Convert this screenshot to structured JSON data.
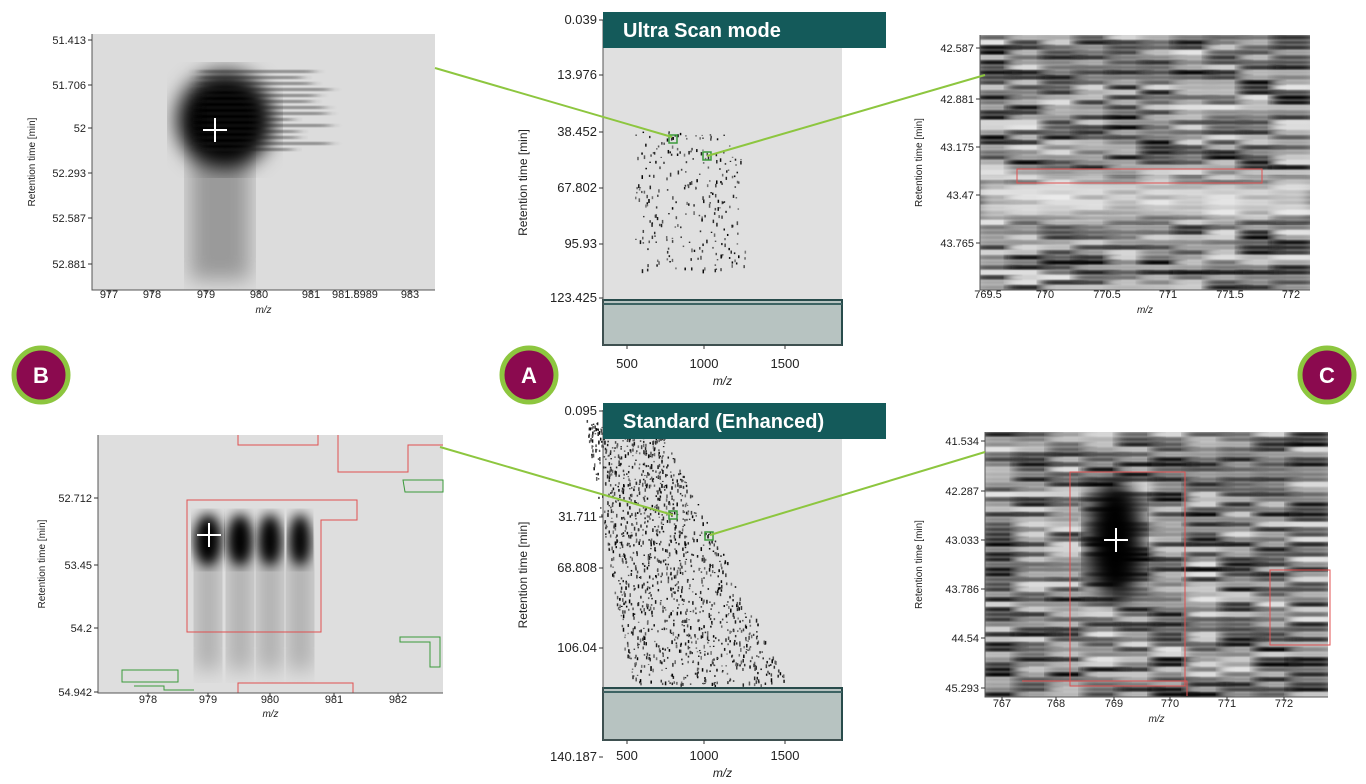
{
  "panels": [
    {
      "y_label": "Retention time [min]",
      "x_label": "m/z",
      "y_ticks": [
        "51.413",
        "51.706",
        "52",
        "52.293",
        "52.587",
        "52.881"
      ],
      "x_ticks": [
        "977",
        "978",
        "979",
        "980",
        "981",
        "981.8989",
        "983"
      ]
    },
    {
      "title": "Ultra Scan mode",
      "y_label": "Retention time [min]",
      "x_label": "m/z",
      "y_ticks": [
        "0.039",
        "13.976",
        "38.452",
        "67.802",
        "95.93",
        "123.425"
      ],
      "x_ticks": [
        "500",
        "1000",
        "1500"
      ]
    },
    {
      "y_label": "Retention time [min]",
      "x_label": "m/z",
      "y_ticks": [
        "42.587",
        "42.881",
        "43.175",
        "43.47",
        "43.765"
      ],
      "x_ticks": [
        "769.5",
        "770",
        "770.5",
        "771",
        "771.5",
        "772"
      ]
    },
    {
      "y_label": "Retention time [min]",
      "x_label": "m/z",
      "y_ticks": [
        "52.712",
        "53.45",
        "54.2",
        "54.942"
      ],
      "x_ticks": [
        "978",
        "979",
        "980",
        "981",
        "982"
      ]
    },
    {
      "title": "Standard (Enhanced)",
      "y_label": "Retention time [min]",
      "x_label": "m/z",
      "y_ticks": [
        "0.095",
        "31.711",
        "68.808",
        "106.04",
        "140.187"
      ],
      "x_ticks": [
        "500",
        "1000",
        "1500"
      ]
    },
    {
      "y_label": "Retention time [min]",
      "x_label": "m/z",
      "y_ticks": [
        "41.534",
        "42.287",
        "43.033",
        "43.786",
        "44.54",
        "45.293"
      ],
      "x_ticks": [
        "767",
        "768",
        "769",
        "770",
        "771",
        "772"
      ]
    }
  ],
  "badges": [
    "B",
    "A",
    "C"
  ]
}
